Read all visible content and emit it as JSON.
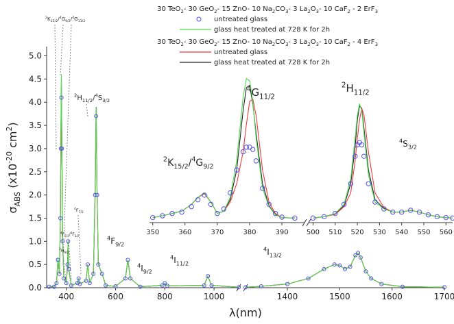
{
  "chart_data": [
    {
      "type": "line",
      "legend_titles": [
        [
          [
            "30 TeO",
            "base"
          ],
          [
            "2",
            "sub"
          ],
          [
            "- 30 GeO",
            "base"
          ],
          [
            "2",
            "sub"
          ],
          [
            "- 15 ZnO- 10 Na",
            "base"
          ],
          [
            "2",
            "sub"
          ],
          [
            "CO",
            "base"
          ],
          [
            "3",
            "sub"
          ],
          [
            "- 3 La",
            "base"
          ],
          [
            "2",
            "sub"
          ],
          [
            "O",
            "base"
          ],
          [
            "3",
            "sub"
          ],
          [
            "- 10 CaF",
            "base"
          ],
          [
            "2",
            "sub"
          ],
          [
            " - 2 ErF",
            "base"
          ],
          [
            "3",
            "sub"
          ]
        ],
        [
          [
            "30 TeO",
            "base"
          ],
          [
            "2",
            "sub"
          ],
          [
            "- 30 GeO",
            "base"
          ],
          [
            "2",
            "sub"
          ],
          [
            "- 15 ZnO- 10 Na",
            "base"
          ],
          [
            "2",
            "sub"
          ],
          [
            "CO",
            "base"
          ],
          [
            "3",
            "sub"
          ],
          [
            "- 3 La",
            "base"
          ],
          [
            "2",
            "sub"
          ],
          [
            "O",
            "base"
          ],
          [
            "3",
            "sub"
          ],
          [
            "- 10 CaF",
            "base"
          ],
          [
            "2",
            "sub"
          ],
          [
            " - 4 ErF",
            "base"
          ],
          [
            "3",
            "sub"
          ]
        ]
      ],
      "xlabel": "λ(nm)",
      "ylabel": [
        [
          "σ",
          "base"
        ],
        [
          "ABS",
          "sub"
        ],
        [
          " (x10",
          "base"
        ],
        [
          "-20",
          "sup"
        ],
        [
          " cm",
          "base"
        ],
        [
          "2",
          "sup"
        ],
        [
          ")",
          "base"
        ]
      ],
      "xlim": [
        320,
        1700
      ],
      "xbreak": [
        1100,
        1320
      ],
      "xticks": [
        400,
        600,
        800,
        1000,
        1400,
        1500,
        1600,
        1700
      ],
      "ylim": [
        0,
        5.2
      ],
      "yticks": [
        {
          "value": 0,
          "label": "0.0"
        },
        0.5,
        {
          "value": 1,
          "label": "1.0"
        },
        1.5,
        {
          "value": 2,
          "label": "2.0"
        },
        2.5,
        {
          "value": 3,
          "label": "3.0"
        },
        3.5,
        {
          "value": 4,
          "label": "4.0"
        },
        4.5,
        {
          "value": 5,
          "label": "5.0"
        }
      ],
      "x": [
        330,
        350,
        360,
        366,
        372,
        376,
        378,
        380,
        382,
        385,
        390,
        400,
        405,
        407,
        410,
        420,
        445,
        450,
        455,
        480,
        487,
        495,
        510,
        517,
        521,
        525,
        530,
        545,
        560,
        600,
        640,
        650,
        660,
        700,
        790,
        800,
        810,
        960,
        975,
        990,
        1100,
        1320,
        1350,
        1400,
        1440,
        1470,
        1490,
        1500,
        1510,
        1520,
        1530,
        1535,
        1540,
        1550,
        1560,
        1580,
        1620,
        1700
      ],
      "series": [
        {
          "name": "untreated glass",
          "color": "#4f4fe6",
          "marker": "circle",
          "values": [
            0.02,
            0.02,
            0.1,
            0.6,
            0.3,
            1.5,
            3.0,
            4.1,
            3.0,
            1.0,
            0.2,
            0.1,
            0.5,
            1.0,
            0.4,
            0.05,
            0.1,
            0.2,
            0.08,
            0.15,
            0.5,
            0.1,
            0.3,
            2.0,
            3.7,
            2.0,
            0.5,
            0.3,
            0.05,
            0.03,
            0.2,
            0.6,
            0.2,
            0.02,
            0.05,
            0.1,
            0.04,
            0.05,
            0.25,
            0.05,
            0.01,
            0.01,
            0.03,
            0.08,
            0.2,
            0.4,
            0.5,
            0.48,
            0.4,
            0.45,
            0.7,
            0.75,
            0.65,
            0.35,
            0.2,
            0.08,
            0.02,
            0.01
          ]
        },
        {
          "name": "glass heat treated at 728 K for 2h",
          "color": "#4fd94f",
          "values": [
            0.02,
            0.02,
            0.1,
            0.65,
            0.3,
            1.5,
            3.5,
            4.6,
            3.0,
            1.0,
            0.2,
            0.1,
            0.5,
            1.0,
            0.4,
            0.05,
            0.1,
            0.2,
            0.08,
            0.15,
            0.5,
            0.1,
            0.3,
            2.2,
            3.9,
            2.0,
            0.5,
            0.3,
            0.05,
            0.03,
            0.2,
            0.6,
            0.2,
            0.02,
            0.05,
            0.1,
            0.04,
            0.05,
            0.25,
            0.05,
            0.01,
            0.01,
            0.03,
            0.08,
            0.2,
            0.4,
            0.5,
            0.48,
            0.4,
            0.45,
            0.7,
            0.75,
            0.65,
            0.35,
            0.2,
            0.08,
            0.02,
            0.01
          ]
        },
        {
          "name": "untreated glass",
          "color": "#ee3b3b",
          "values": [
            0.02,
            0.02,
            0.1,
            0.6,
            0.3,
            1.5,
            3.0,
            4.2,
            3.0,
            1.0,
            0.2,
            0.1,
            0.5,
            1.0,
            0.4,
            0.05,
            0.1,
            0.2,
            0.08,
            0.15,
            0.5,
            0.1,
            0.3,
            2.0,
            3.8,
            2.0,
            0.5,
            0.3,
            0.05,
            0.03,
            0.2,
            0.6,
            0.2,
            0.02,
            0.05,
            0.1,
            0.04,
            0.05,
            0.25,
            0.05,
            0.01,
            0.01,
            0.03,
            0.08,
            0.2,
            0.4,
            0.5,
            0.48,
            0.4,
            0.45,
            0.7,
            0.75,
            0.65,
            0.35,
            0.2,
            0.08,
            0.02,
            0.01
          ]
        },
        {
          "name": "glass heat treated at 728 K for 2h",
          "color": "#222222",
          "values": [
            0.02,
            0.02,
            0.1,
            0.6,
            0.3,
            1.5,
            3.3,
            4.5,
            3.0,
            1.0,
            0.2,
            0.1,
            0.5,
            1.0,
            0.4,
            0.05,
            0.1,
            0.2,
            0.08,
            0.15,
            0.5,
            0.1,
            0.3,
            2.0,
            3.9,
            2.0,
            0.5,
            0.3,
            0.05,
            0.03,
            0.2,
            0.6,
            0.2,
            0.02,
            0.05,
            0.1,
            0.04,
            0.05,
            0.25,
            0.05,
            0.01,
            0.01,
            0.03,
            0.08,
            0.2,
            0.4,
            0.5,
            0.48,
            0.4,
            0.45,
            0.7,
            0.75,
            0.65,
            0.35,
            0.2,
            0.08,
            0.02,
            0.01
          ]
        }
      ],
      "annotations": [
        [
          [
            "2",
            "sup"
          ],
          [
            "K",
            "base"
          ],
          [
            "15/2",
            "sub"
          ],
          [
            "/",
            "base"
          ],
          [
            "4",
            "sup"
          ],
          [
            "G",
            "base"
          ],
          [
            "9/2",
            "sub"
          ],
          [
            "/",
            "base"
          ],
          [
            "4",
            "sup"
          ],
          [
            "G",
            "base"
          ],
          [
            "11/2",
            "sub"
          ]
        ],
        [
          [
            "2",
            "sup"
          ],
          [
            "H",
            "base"
          ],
          [
            "11/2",
            "sub"
          ],
          [
            "/",
            "base"
          ],
          [
            "4",
            "sup"
          ],
          [
            "S",
            "base"
          ],
          [
            "3/2",
            "sub"
          ]
        ],
        [
          [
            "4",
            "sup"
          ],
          [
            "F",
            "base"
          ],
          [
            "7/2",
            "sub"
          ]
        ],
        [
          [
            "4",
            "sup"
          ],
          [
            "F",
            "base"
          ],
          [
            "5/2",
            "sub"
          ],
          [
            "/",
            "base"
          ],
          [
            "4",
            "sup"
          ],
          [
            "F",
            "base"
          ],
          [
            "3/2",
            "sub"
          ]
        ],
        [
          [
            "2",
            "sup"
          ],
          [
            "H",
            "base"
          ],
          [
            "9/2",
            "sub"
          ]
        ],
        [
          [
            "4",
            "sup"
          ],
          [
            "F",
            "base"
          ],
          [
            "9/2",
            "sub"
          ]
        ],
        [
          [
            "4",
            "sup"
          ],
          [
            "I",
            "base"
          ],
          [
            "9/2",
            "sub"
          ]
        ],
        [
          [
            "4",
            "sup"
          ],
          [
            "I",
            "base"
          ],
          [
            "11/2",
            "sub"
          ]
        ],
        [
          [
            "4",
            "sup"
          ],
          [
            "I",
            "base"
          ],
          [
            "13/2",
            "sub"
          ]
        ]
      ]
    },
    {
      "type": "line",
      "xlim": [
        349,
        563
      ],
      "xbreak": [
        397,
        498
      ],
      "xticks": [
        350,
        360,
        370,
        380,
        390,
        500,
        510,
        520,
        530,
        540,
        550,
        560
      ],
      "ylim": [
        1.45,
        4.7
      ],
      "x": [
        350,
        353,
        356,
        359,
        362,
        364,
        366,
        368,
        370,
        372,
        374,
        376,
        378,
        379,
        380,
        381,
        382,
        384,
        386,
        388,
        390,
        394,
        500,
        505,
        510,
        514,
        517,
        519,
        520,
        521,
        522,
        523,
        525,
        528,
        532,
        536,
        540,
        544,
        548,
        552,
        556,
        560,
        563
      ],
      "series": [
        {
          "color": "#4f4fe6",
          "marker": "circle",
          "values": [
            1.56,
            1.6,
            1.65,
            1.68,
            1.8,
            1.95,
            2.05,
            1.85,
            1.65,
            1.75,
            2.1,
            2.6,
            3.0,
            3.1,
            3.1,
            3.05,
            2.8,
            2.2,
            1.85,
            1.65,
            1.57,
            1.55,
            1.55,
            1.58,
            1.65,
            1.85,
            2.3,
            2.9,
            3.15,
            3.2,
            3.15,
            2.9,
            2.3,
            1.9,
            1.75,
            1.68,
            1.68,
            1.72,
            1.68,
            1.62,
            1.58,
            1.56,
            1.55
          ]
        },
        {
          "color": "#4fd94f",
          "values": [
            1.56,
            1.6,
            1.65,
            1.7,
            1.85,
            2.0,
            2.1,
            1.9,
            1.65,
            1.7,
            2.0,
            2.8,
            4.2,
            4.6,
            4.55,
            4.1,
            3.3,
            2.2,
            1.8,
            1.62,
            1.56,
            1.55,
            1.55,
            1.58,
            1.65,
            1.85,
            2.4,
            3.3,
            3.8,
            4.05,
            3.9,
            3.4,
            2.5,
            1.9,
            1.75,
            1.68,
            1.68,
            1.72,
            1.68,
            1.62,
            1.58,
            1.56,
            1.55
          ]
        },
        {
          "color": "#ee3b3b",
          "values": [
            1.56,
            1.6,
            1.65,
            1.7,
            1.85,
            2.0,
            2.08,
            1.9,
            1.65,
            1.7,
            1.9,
            2.3,
            3.0,
            3.6,
            4.1,
            4.15,
            3.8,
            2.6,
            1.9,
            1.65,
            1.56,
            1.55,
            1.55,
            1.58,
            1.63,
            1.8,
            2.1,
            2.8,
            3.3,
            3.7,
            3.95,
            3.8,
            3.0,
            2.1,
            1.78,
            1.68,
            1.68,
            1.72,
            1.68,
            1.62,
            1.58,
            1.56,
            1.55
          ]
        },
        {
          "color": "#222222",
          "values": [
            1.56,
            1.6,
            1.65,
            1.7,
            1.85,
            2.0,
            2.1,
            1.9,
            1.65,
            1.7,
            1.95,
            2.6,
            3.9,
            4.4,
            4.45,
            4.05,
            3.4,
            2.3,
            1.82,
            1.63,
            1.56,
            1.55,
            1.55,
            1.58,
            1.64,
            1.82,
            2.3,
            3.1,
            3.7,
            4.0,
            3.95,
            3.5,
            2.6,
            1.95,
            1.76,
            1.68,
            1.68,
            1.72,
            1.68,
            1.62,
            1.58,
            1.56,
            1.55
          ]
        }
      ],
      "annotations": [
        [
          [
            "2",
            "sup"
          ],
          [
            "K",
            "base"
          ],
          [
            "15/2",
            "sub"
          ],
          [
            "/",
            "base"
          ],
          [
            "4",
            "sup"
          ],
          [
            "G",
            "base"
          ],
          [
            "9/2",
            "sub"
          ]
        ],
        [
          [
            "4",
            "sup"
          ],
          [
            "G",
            "base"
          ],
          [
            "11/2",
            "sub"
          ]
        ],
        [
          [
            "2",
            "sup"
          ],
          [
            "H",
            "base"
          ],
          [
            "11/2",
            "sub"
          ]
        ],
        [
          [
            "4",
            "sup"
          ],
          [
            "S",
            "base"
          ],
          [
            "3/2",
            "sub"
          ]
        ]
      ]
    }
  ]
}
